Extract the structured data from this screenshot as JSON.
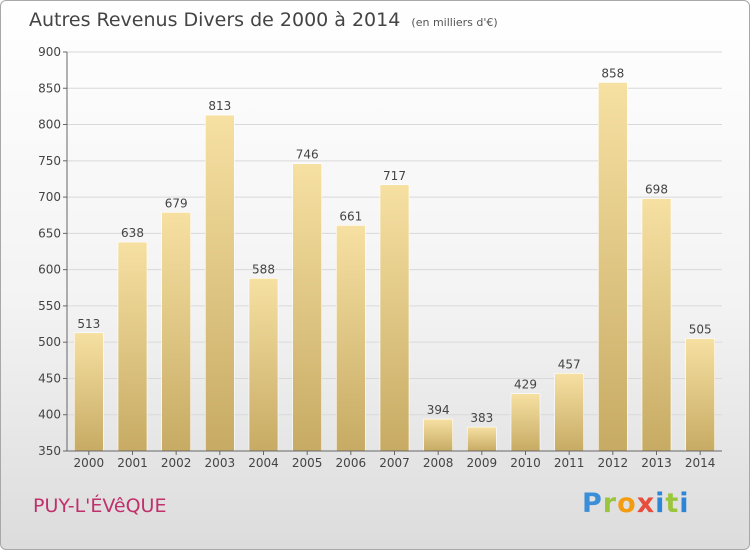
{
  "header": {
    "title": "Autres Revenus Divers de 2000 à 2014",
    "subtitle": "(en milliers d'€)"
  },
  "footer": {
    "commune": "PUY-L'ÉVêQUE",
    "logo": [
      "P",
      "r",
      "o",
      "x",
      "i",
      "t",
      "i"
    ],
    "logo_colors": [
      "#3a8fd8",
      "#9bc53d",
      "#f39c12",
      "#e74c3c",
      "#2b86d9",
      "#9bc53d",
      "#2b86d9"
    ]
  },
  "colors": {
    "bar_light": "#f6e0a2",
    "bar_dark": "#c7ab64",
    "grid": "#d9d9d9",
    "axis": "#666666",
    "commune_text": "#c0306b"
  },
  "chart_data": {
    "type": "bar",
    "title": "Autres Revenus Divers de 2000 à 2014",
    "subtitle": "(en milliers d'€)",
    "categories": [
      "2000",
      "2001",
      "2002",
      "2003",
      "2004",
      "2005",
      "2006",
      "2007",
      "2008",
      "2009",
      "2010",
      "2011",
      "2012",
      "2013",
      "2014"
    ],
    "values": [
      513,
      638,
      679,
      813,
      588,
      746,
      661,
      717,
      394,
      383,
      429,
      457,
      858,
      698,
      505
    ],
    "ylim": [
      350,
      900
    ],
    "yticks": [
      350,
      400,
      450,
      500,
      550,
      600,
      650,
      700,
      750,
      800,
      850,
      900
    ],
    "grid": true,
    "data_labels": true
  }
}
